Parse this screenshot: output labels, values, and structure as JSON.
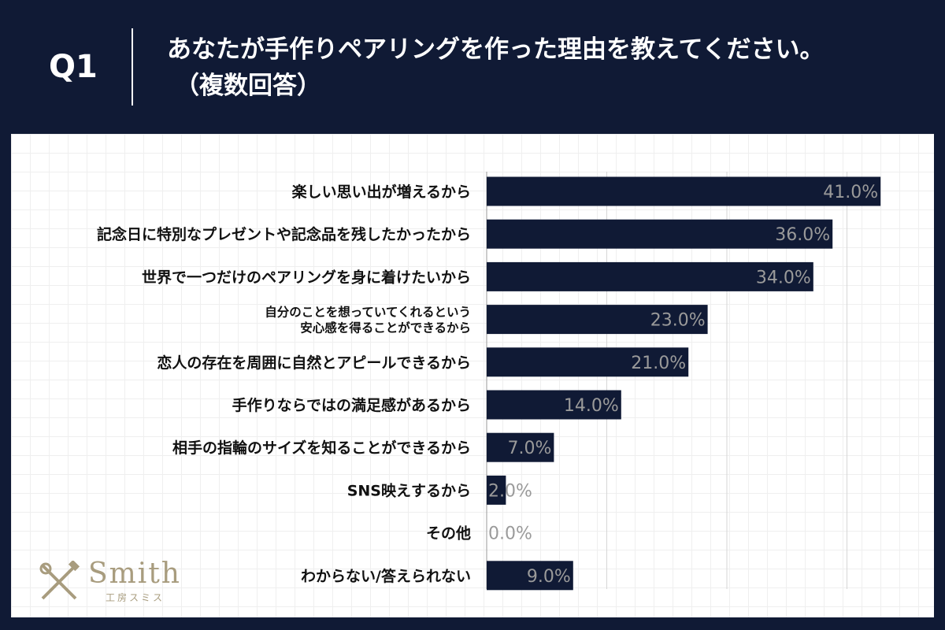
{
  "header": {
    "question_number": "Q1",
    "title_line1": "あなたが手作りペアリングを作った理由を教えてください。",
    "title_line2": "（複数回答）"
  },
  "brand": {
    "logo_text": "Smith",
    "logo_subtext": "工房スミス"
  },
  "colors": {
    "background": "#101a35",
    "bar": "#101a35",
    "value_label": "#9a9a9a",
    "gridline": "#d6d6d6",
    "logo": "#a89c7e"
  },
  "chart_data": {
    "type": "bar",
    "orientation": "horizontal",
    "categories": [
      [
        "楽しい思い出が増えるから"
      ],
      [
        "記念日に特別なプレゼントや記念品を残したかったから"
      ],
      [
        "世界で一つだけのペアリングを身に着けたいから"
      ],
      [
        "自分のことを想っていてくれるという",
        "安心感を得ることができるから"
      ],
      [
        "恋人の存在を周囲に自然とアピールできるから"
      ],
      [
        "手作りならではの満足感があるから"
      ],
      [
        "相手の指輪のサイズを知ることができるから"
      ],
      [
        "SNS映えするから"
      ],
      [
        "その他"
      ],
      [
        "わからない/答えられない"
      ]
    ],
    "values": [
      41.0,
      36.0,
      34.0,
      23.0,
      21.0,
      14.0,
      7.0,
      2.0,
      0.0,
      9.0
    ],
    "value_labels": [
      "41.0%",
      "36.0%",
      "34.0%",
      "23.0%",
      "21.0%",
      "14.0%",
      "7.0%",
      "2.0%",
      "0.0%",
      "9.0%"
    ],
    "xlim": [
      0,
      50
    ],
    "gridlines_at": [
      0,
      12.5,
      25,
      37.5,
      50
    ],
    "grid": true
  }
}
